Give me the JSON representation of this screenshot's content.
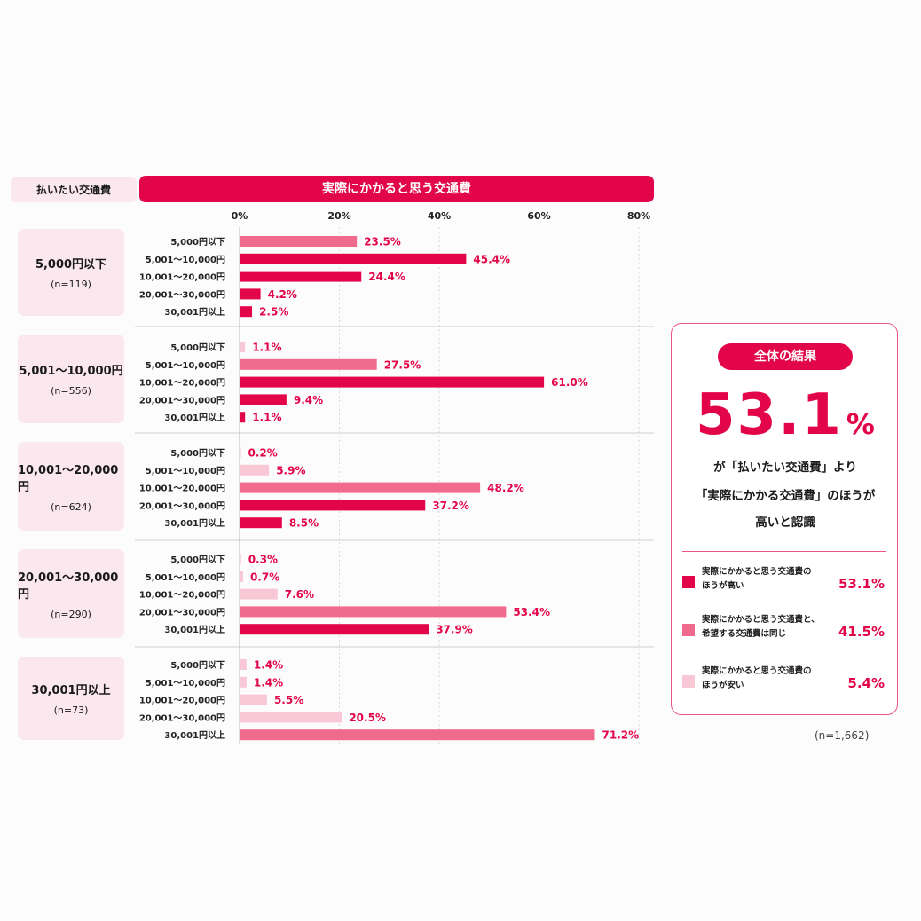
{
  "header": {
    "left_label": "払いたい交通費",
    "top_label": "実際にかかると思う交通費"
  },
  "colors": {
    "high": "#e2054a",
    "same": "#f06a8d",
    "low": "#f9c8d7"
  },
  "chart_data": {
    "type": "bar",
    "orientation": "horizontal",
    "xlim": [
      0,
      80
    ],
    "xticks": [
      "0%",
      "20%",
      "40%",
      "60%",
      "80%"
    ],
    "categories": [
      "5,000円以下",
      "5,001〜10,000円",
      "10,001〜20,000円",
      "20,001〜30,000円",
      "30,001円以上"
    ],
    "groups": [
      {
        "label": "5,000円以下",
        "n": "(n=119)",
        "values": [
          23.5,
          45.4,
          24.4,
          4.2,
          2.5
        ],
        "value_labels": [
          "23.5%",
          "45.4%",
          "24.4%",
          "4.2%",
          "2.5%"
        ],
        "kinds": [
          "same",
          "high",
          "high",
          "high",
          "high"
        ]
      },
      {
        "label": "5,001〜10,000円",
        "n": "(n=556)",
        "values": [
          1.1,
          27.5,
          61.0,
          9.4,
          1.1
        ],
        "value_labels": [
          "1.1%",
          "27.5%",
          "61.0%",
          "9.4%",
          "1.1%"
        ],
        "kinds": [
          "low",
          "same",
          "high",
          "high",
          "high"
        ]
      },
      {
        "label": "10,001〜20,000円",
        "n": "(n=624)",
        "values": [
          0.2,
          5.9,
          48.2,
          37.2,
          8.5
        ],
        "value_labels": [
          "0.2%",
          "5.9%",
          "48.2%",
          "37.2%",
          "8.5%"
        ],
        "kinds": [
          "low",
          "low",
          "same",
          "high",
          "high"
        ]
      },
      {
        "label": "20,001〜30,000円",
        "n": "(n=290)",
        "values": [
          0.3,
          0.7,
          7.6,
          53.4,
          37.9
        ],
        "value_labels": [
          "0.3%",
          "0.7%",
          "7.6%",
          "53.4%",
          "37.9%"
        ],
        "kinds": [
          "low",
          "low",
          "low",
          "same",
          "high"
        ]
      },
      {
        "label": "30,001円以上",
        "n": "(n=73)",
        "values": [
          1.4,
          1.4,
          5.5,
          20.5,
          71.2
        ],
        "value_labels": [
          "1.4%",
          "1.4%",
          "5.5%",
          "20.5%",
          "71.2%"
        ],
        "kinds": [
          "low",
          "low",
          "low",
          "low",
          "same"
        ]
      }
    ]
  },
  "summary": {
    "badge": "全体の結果",
    "big_number": "53.1",
    "big_unit": "%",
    "line1": "が「払いたい交通費」より",
    "line2": "「実際にかかる交通費」のほうが",
    "line3": "高いと認識",
    "legend": [
      {
        "label_1": "実際にかかると思う交通費の",
        "label_2": "ほうが高い",
        "value": "53.1%",
        "color": "#e2054a"
      },
      {
        "label_1": "実際にかかると思う交通費と、",
        "label_2": "希望する交通費は同じ",
        "value": "41.5%",
        "color": "#f06a8d"
      },
      {
        "label_1": "実際にかかると思う交通費の",
        "label_2": "ほうが安い",
        "value": "5.4%",
        "color": "#f9c8d7"
      }
    ]
  },
  "footnote": "(n=1,662)"
}
